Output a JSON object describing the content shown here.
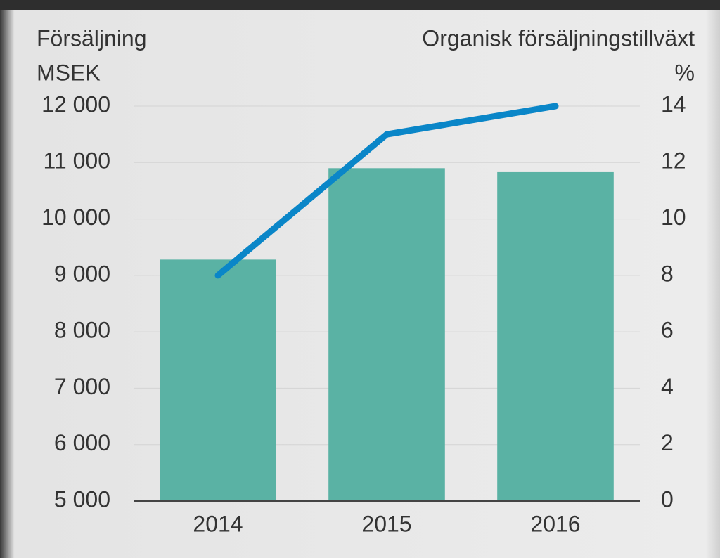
{
  "chart_data": {
    "type": "combo",
    "ylabel": "Försäljning",
    "yunit": "MSEK",
    "y2label": "Organisk försäljningstillväxt",
    "y2unit": "%",
    "categories": [
      "2014",
      "2015",
      "2016"
    ],
    "series": [
      {
        "type": "bar",
        "color": "#5ab2a4",
        "values": [
          9280,
          10900,
          10830
        ]
      },
      {
        "type": "line",
        "axis": "y2",
        "color": "#0a86c8",
        "values": [
          8,
          13,
          14
        ]
      }
    ],
    "ylim": [
      5000,
      12000
    ],
    "yticks": [
      {
        "value": 5000,
        "label": "5 000"
      },
      {
        "value": 6000,
        "label": "6 000"
      },
      {
        "value": 7000,
        "label": "7 000"
      },
      {
        "value": 8000,
        "label": "8 000"
      },
      {
        "value": 9000,
        "label": "9 000"
      },
      {
        "value": 10000,
        "label": "10 000"
      },
      {
        "value": 11000,
        "label": "11 000"
      },
      {
        "value": 12000,
        "label": "12 000"
      }
    ],
    "y2lim": [
      0,
      14
    ],
    "y2ticks": [
      0,
      2,
      4,
      6,
      8,
      10,
      12,
      14
    ],
    "grid": true
  }
}
